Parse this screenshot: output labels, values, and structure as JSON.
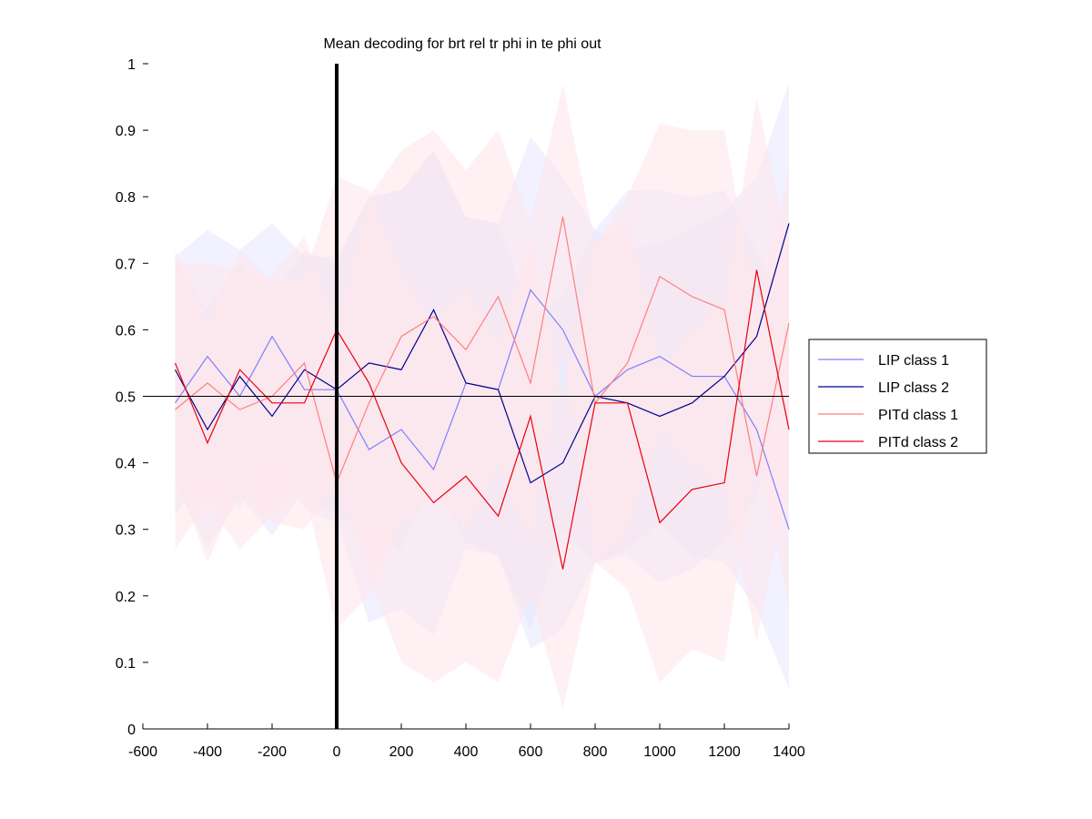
{
  "chart_data": {
    "type": "line",
    "title": "Mean decoding for brt rel tr phi in te phi out",
    "xlabel": "",
    "ylabel": "",
    "xlim": [
      -600,
      1400
    ],
    "ylim": [
      0,
      1
    ],
    "xticks": [
      -600,
      -400,
      -200,
      0,
      200,
      400,
      600,
      800,
      1000,
      1200,
      1400
    ],
    "yticks": [
      0,
      0.1,
      0.2,
      0.3,
      0.4,
      0.5,
      0.6,
      0.7,
      0.8,
      0.9,
      1
    ],
    "grid": false,
    "legend_position": "right",
    "reference_line_y": 0.5,
    "event_line_x": 0,
    "x": [
      -500,
      -400,
      -300,
      -200,
      -100,
      0,
      100,
      200,
      300,
      400,
      500,
      600,
      700,
      800,
      900,
      1000,
      1100,
      1200,
      1300,
      1400
    ],
    "series": [
      {
        "name": "LIP class 1",
        "color": "#7f7fff",
        "band_color": "#e6e6ff",
        "values": [
          0.49,
          0.56,
          0.5,
          0.59,
          0.51,
          0.51,
          0.42,
          0.45,
          0.39,
          0.52,
          0.51,
          0.66,
          0.6,
          0.5,
          0.54,
          0.56,
          0.53,
          0.53,
          0.45,
          0.3
        ],
        "upper": [
          0.71,
          0.75,
          0.72,
          0.76,
          0.71,
          0.71,
          0.8,
          0.81,
          0.87,
          0.77,
          0.76,
          0.89,
          0.83,
          0.75,
          0.81,
          0.81,
          0.8,
          0.81,
          0.72,
          0.62
        ],
        "lower": [
          0.32,
          0.39,
          0.33,
          0.42,
          0.33,
          0.31,
          0.16,
          0.18,
          0.14,
          0.27,
          0.26,
          0.15,
          0.3,
          0.25,
          0.27,
          0.31,
          0.26,
          0.25,
          0.18,
          0.06
        ]
      },
      {
        "name": "LIP class 2",
        "color": "#00008f",
        "band_color": "#e6e6ff",
        "values": [
          0.54,
          0.45,
          0.53,
          0.47,
          0.54,
          0.51,
          0.55,
          0.54,
          0.63,
          0.52,
          0.51,
          0.37,
          0.4,
          0.5,
          0.49,
          0.47,
          0.49,
          0.53,
          0.59,
          0.76
        ],
        "upper": [
          0.7,
          0.63,
          0.7,
          0.65,
          0.72,
          0.7,
          0.8,
          0.81,
          0.87,
          0.77,
          0.76,
          0.62,
          0.65,
          0.75,
          0.72,
          0.73,
          0.75,
          0.78,
          0.83,
          0.97
        ],
        "lower": [
          0.37,
          0.27,
          0.35,
          0.29,
          0.36,
          0.32,
          0.3,
          0.27,
          0.39,
          0.28,
          0.26,
          0.12,
          0.15,
          0.25,
          0.26,
          0.22,
          0.24,
          0.28,
          0.35,
          0.55
        ]
      },
      {
        "name": "PITd class 1",
        "color": "#ff7f7f",
        "band_color": "#ffe6ea",
        "values": [
          0.48,
          0.52,
          0.48,
          0.5,
          0.55,
          0.37,
          0.49,
          0.59,
          0.62,
          0.57,
          0.65,
          0.52,
          0.77,
          0.49,
          0.55,
          0.68,
          0.65,
          0.63,
          0.38,
          0.61
        ],
        "upper": [
          0.7,
          0.7,
          0.69,
          0.68,
          0.74,
          0.6,
          0.8,
          0.87,
          0.9,
          0.84,
          0.9,
          0.76,
          0.97,
          0.73,
          0.8,
          0.91,
          0.9,
          0.9,
          0.63,
          0.84
        ],
        "lower": [
          0.27,
          0.34,
          0.27,
          0.32,
          0.36,
          0.15,
          0.2,
          0.31,
          0.35,
          0.3,
          0.4,
          0.28,
          0.57,
          0.25,
          0.3,
          0.45,
          0.4,
          0.36,
          0.13,
          0.38
        ]
      },
      {
        "name": "PITd class 2",
        "color": "#e8000b",
        "band_color": "#ffe6ea",
        "values": [
          0.55,
          0.43,
          0.54,
          0.49,
          0.49,
          0.6,
          0.52,
          0.4,
          0.34,
          0.38,
          0.32,
          0.47,
          0.24,
          0.49,
          0.49,
          0.31,
          0.36,
          0.37,
          0.69,
          0.45
        ],
        "upper": [
          0.72,
          0.61,
          0.72,
          0.67,
          0.68,
          0.83,
          0.81,
          0.68,
          0.61,
          0.66,
          0.58,
          0.74,
          0.5,
          0.73,
          0.77,
          0.54,
          0.6,
          0.64,
          0.95,
          0.72
        ],
        "lower": [
          0.38,
          0.25,
          0.36,
          0.31,
          0.3,
          0.37,
          0.23,
          0.1,
          0.07,
          0.1,
          0.07,
          0.2,
          0.03,
          0.25,
          0.21,
          0.07,
          0.12,
          0.1,
          0.43,
          0.18
        ]
      }
    ]
  }
}
